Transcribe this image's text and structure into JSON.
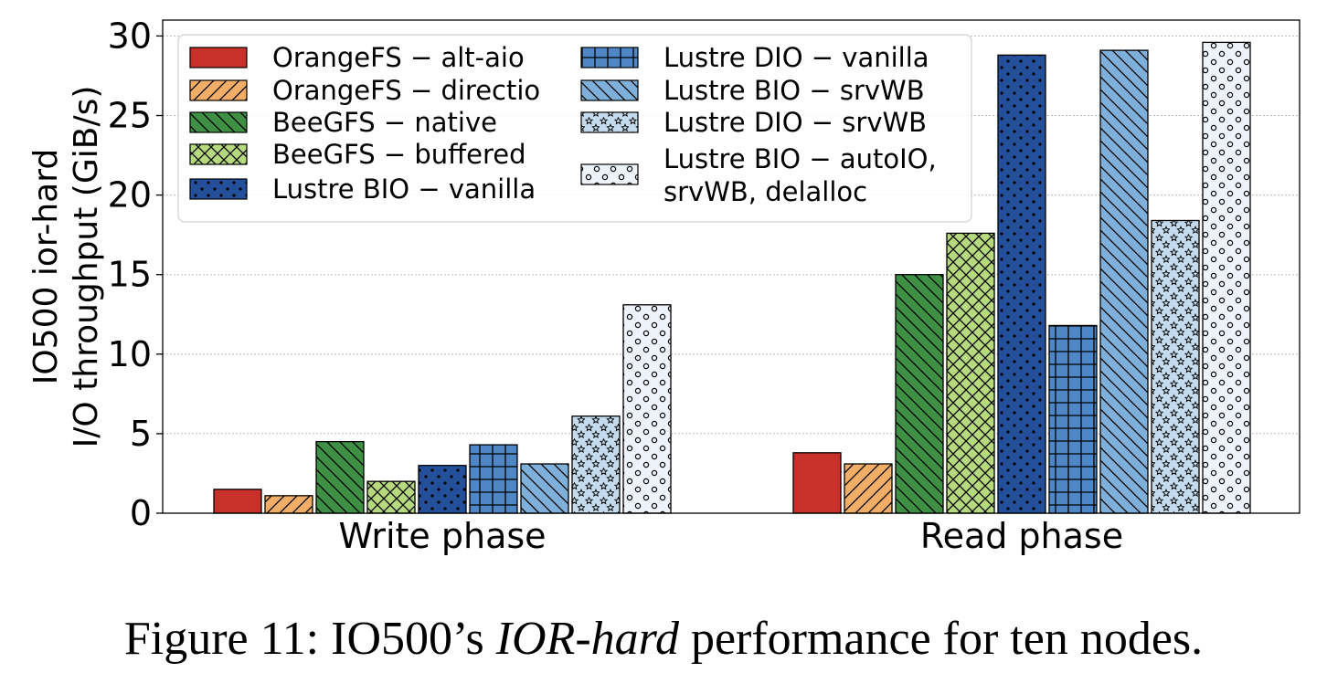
{
  "chart_data": {
    "type": "bar",
    "ylabel_line1": "IO500 ior-hard",
    "ylabel_line2": "I/O throughput (GiB/s)",
    "categories": [
      "Write phase",
      "Read phase"
    ],
    "ylim": [
      0,
      31
    ],
    "yticks": [
      0,
      5,
      10,
      15,
      20,
      25,
      30
    ],
    "grid": "horizontal dotted",
    "legend_position": "top-left",
    "series": [
      {
        "name": "OrangeFS − alt-aio",
        "values": [
          1.5,
          3.8
        ],
        "color": "#c8302a",
        "pattern": "none"
      },
      {
        "name": "OrangeFS − directio",
        "values": [
          1.1,
          3.1
        ],
        "color": "#f2ad66",
        "pattern": "fwd-slash"
      },
      {
        "name": "BeeGFS − native",
        "values": [
          4.5,
          15.0
        ],
        "color": "#3f8f45",
        "pattern": "back-slash"
      },
      {
        "name": "BeeGFS − buffered",
        "values": [
          2.0,
          17.6
        ],
        "color": "#b5d97c",
        "pattern": "cross"
      },
      {
        "name": "Lustre BIO − vanilla",
        "values": [
          3.0,
          28.8
        ],
        "color": "#244f9b",
        "pattern": "dots"
      },
      {
        "name": "Lustre DIO − vanilla",
        "values": [
          4.3,
          11.8
        ],
        "color": "#4f86c6",
        "pattern": "grid"
      },
      {
        "name": "Lustre BIO − srvWB",
        "values": [
          3.1,
          29.1
        ],
        "color": "#7fb0d9",
        "pattern": "back-slash"
      },
      {
        "name": "Lustre DIO − srvWB",
        "values": [
          6.1,
          18.4
        ],
        "color": "#c3dbec",
        "pattern": "stars"
      },
      {
        "name": "Lustre BIO − autoIO, srvWB, delalloc",
        "legend_lines": [
          "Lustre BIO − autoIO,",
          "srvWB, delalloc"
        ],
        "values": [
          13.1,
          29.6
        ],
        "color": "#eef3fb",
        "pattern": "circles"
      }
    ]
  },
  "caption": {
    "prefix": "Figure 11: IO500’s ",
    "italic": "IOR-hard",
    "suffix": " performance for ten nodes."
  }
}
